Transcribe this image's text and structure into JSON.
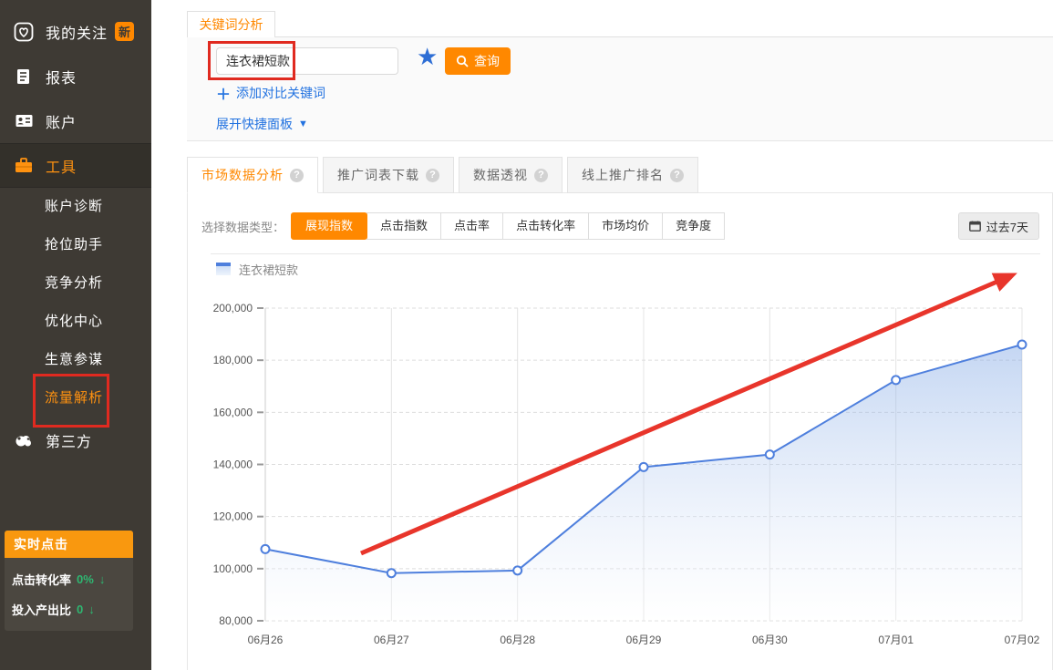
{
  "colors": {
    "accent": "#ff8800",
    "link": "#2272e0",
    "line": "#4e7fdd",
    "annotation": "#e8352b",
    "green": "#2eb872"
  },
  "sidebar": {
    "items": [
      {
        "label": "我的关注",
        "icon": "heart-icon",
        "badge": "新"
      },
      {
        "label": "报表",
        "icon": "report-icon"
      },
      {
        "label": "账户",
        "icon": "account-icon"
      },
      {
        "label": "工具",
        "icon": "toolbox-icon"
      }
    ],
    "submenu": [
      "账户诊断",
      "抢位助手",
      "竞争分析",
      "优化中心",
      "生意参谋",
      "流量解析"
    ],
    "third_party": {
      "label": "第三方",
      "icon": "cloud-icon"
    },
    "realtime": {
      "title": "实时点击",
      "rows": [
        {
          "label": "点击转化率",
          "value": "0%",
          "trend": "down"
        },
        {
          "label": "投入产出比",
          "value": "0",
          "trend": "down"
        }
      ]
    }
  },
  "query": {
    "tab": "关键词分析",
    "keyword": "连衣裙短款",
    "search_label": "查询",
    "add_compare_label": "添加对比关键词",
    "expand_label": "展开快捷面板"
  },
  "analysis_tabs": [
    {
      "label": "市场数据分析"
    },
    {
      "label": "推广词表下载"
    },
    {
      "label": "数据透视"
    },
    {
      "label": "线上推广排名"
    }
  ],
  "datatype": {
    "label": "选择数据类型：",
    "options": [
      "展现指数",
      "点击指数",
      "点击率",
      "点击转化率",
      "市场均价",
      "竞争度"
    ],
    "active": "展现指数"
  },
  "date_range": "过去7天",
  "chart_data": {
    "type": "area",
    "categories": [
      "06月26",
      "06月27",
      "06月28",
      "06月29",
      "06月30",
      "07月01",
      "07月02"
    ],
    "series": [
      {
        "name": "连衣裙短款",
        "values": [
          107500,
          98300,
          99300,
          139000,
          143800,
          172400,
          186000
        ]
      }
    ],
    "ylim": [
      80000,
      200000
    ],
    "ytick_step": 20000,
    "grid": "on",
    "legend_position": "top-left",
    "line_color": "#4e7fdd",
    "annotation": {
      "type": "trend-arrow",
      "color": "#e8352b"
    }
  }
}
